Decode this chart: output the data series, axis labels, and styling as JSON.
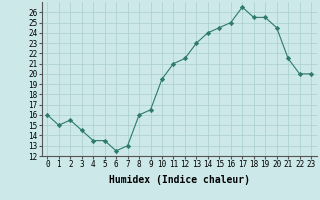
{
  "xlabel": "Humidex (Indice chaleur)",
  "x": [
    0,
    1,
    2,
    3,
    4,
    5,
    6,
    7,
    8,
    9,
    10,
    11,
    12,
    13,
    14,
    15,
    16,
    17,
    18,
    19,
    20,
    21,
    22,
    23
  ],
  "y": [
    16,
    15,
    15.5,
    14.5,
    13.5,
    13.5,
    12.5,
    13,
    16,
    16.5,
    19.5,
    21,
    21.5,
    23,
    24,
    24.5,
    25,
    26.5,
    25.5,
    25.5,
    24.5,
    21.5,
    20,
    20
  ],
  "line_color": "#2d7a6e",
  "marker": "D",
  "marker_size": 2.2,
  "bg_color": "#cce8e8",
  "grid_color": "#aacece",
  "ylim": [
    12,
    27
  ],
  "yticks": [
    12,
    13,
    14,
    15,
    16,
    17,
    18,
    19,
    20,
    21,
    22,
    23,
    24,
    25,
    26
  ],
  "xticks": [
    0,
    1,
    2,
    3,
    4,
    5,
    6,
    7,
    8,
    9,
    10,
    11,
    12,
    13,
    14,
    15,
    16,
    17,
    18,
    19,
    20,
    21,
    22,
    23
  ],
  "tick_fontsize": 5.5,
  "label_fontsize": 7,
  "axis_bg": "#cce8e8"
}
